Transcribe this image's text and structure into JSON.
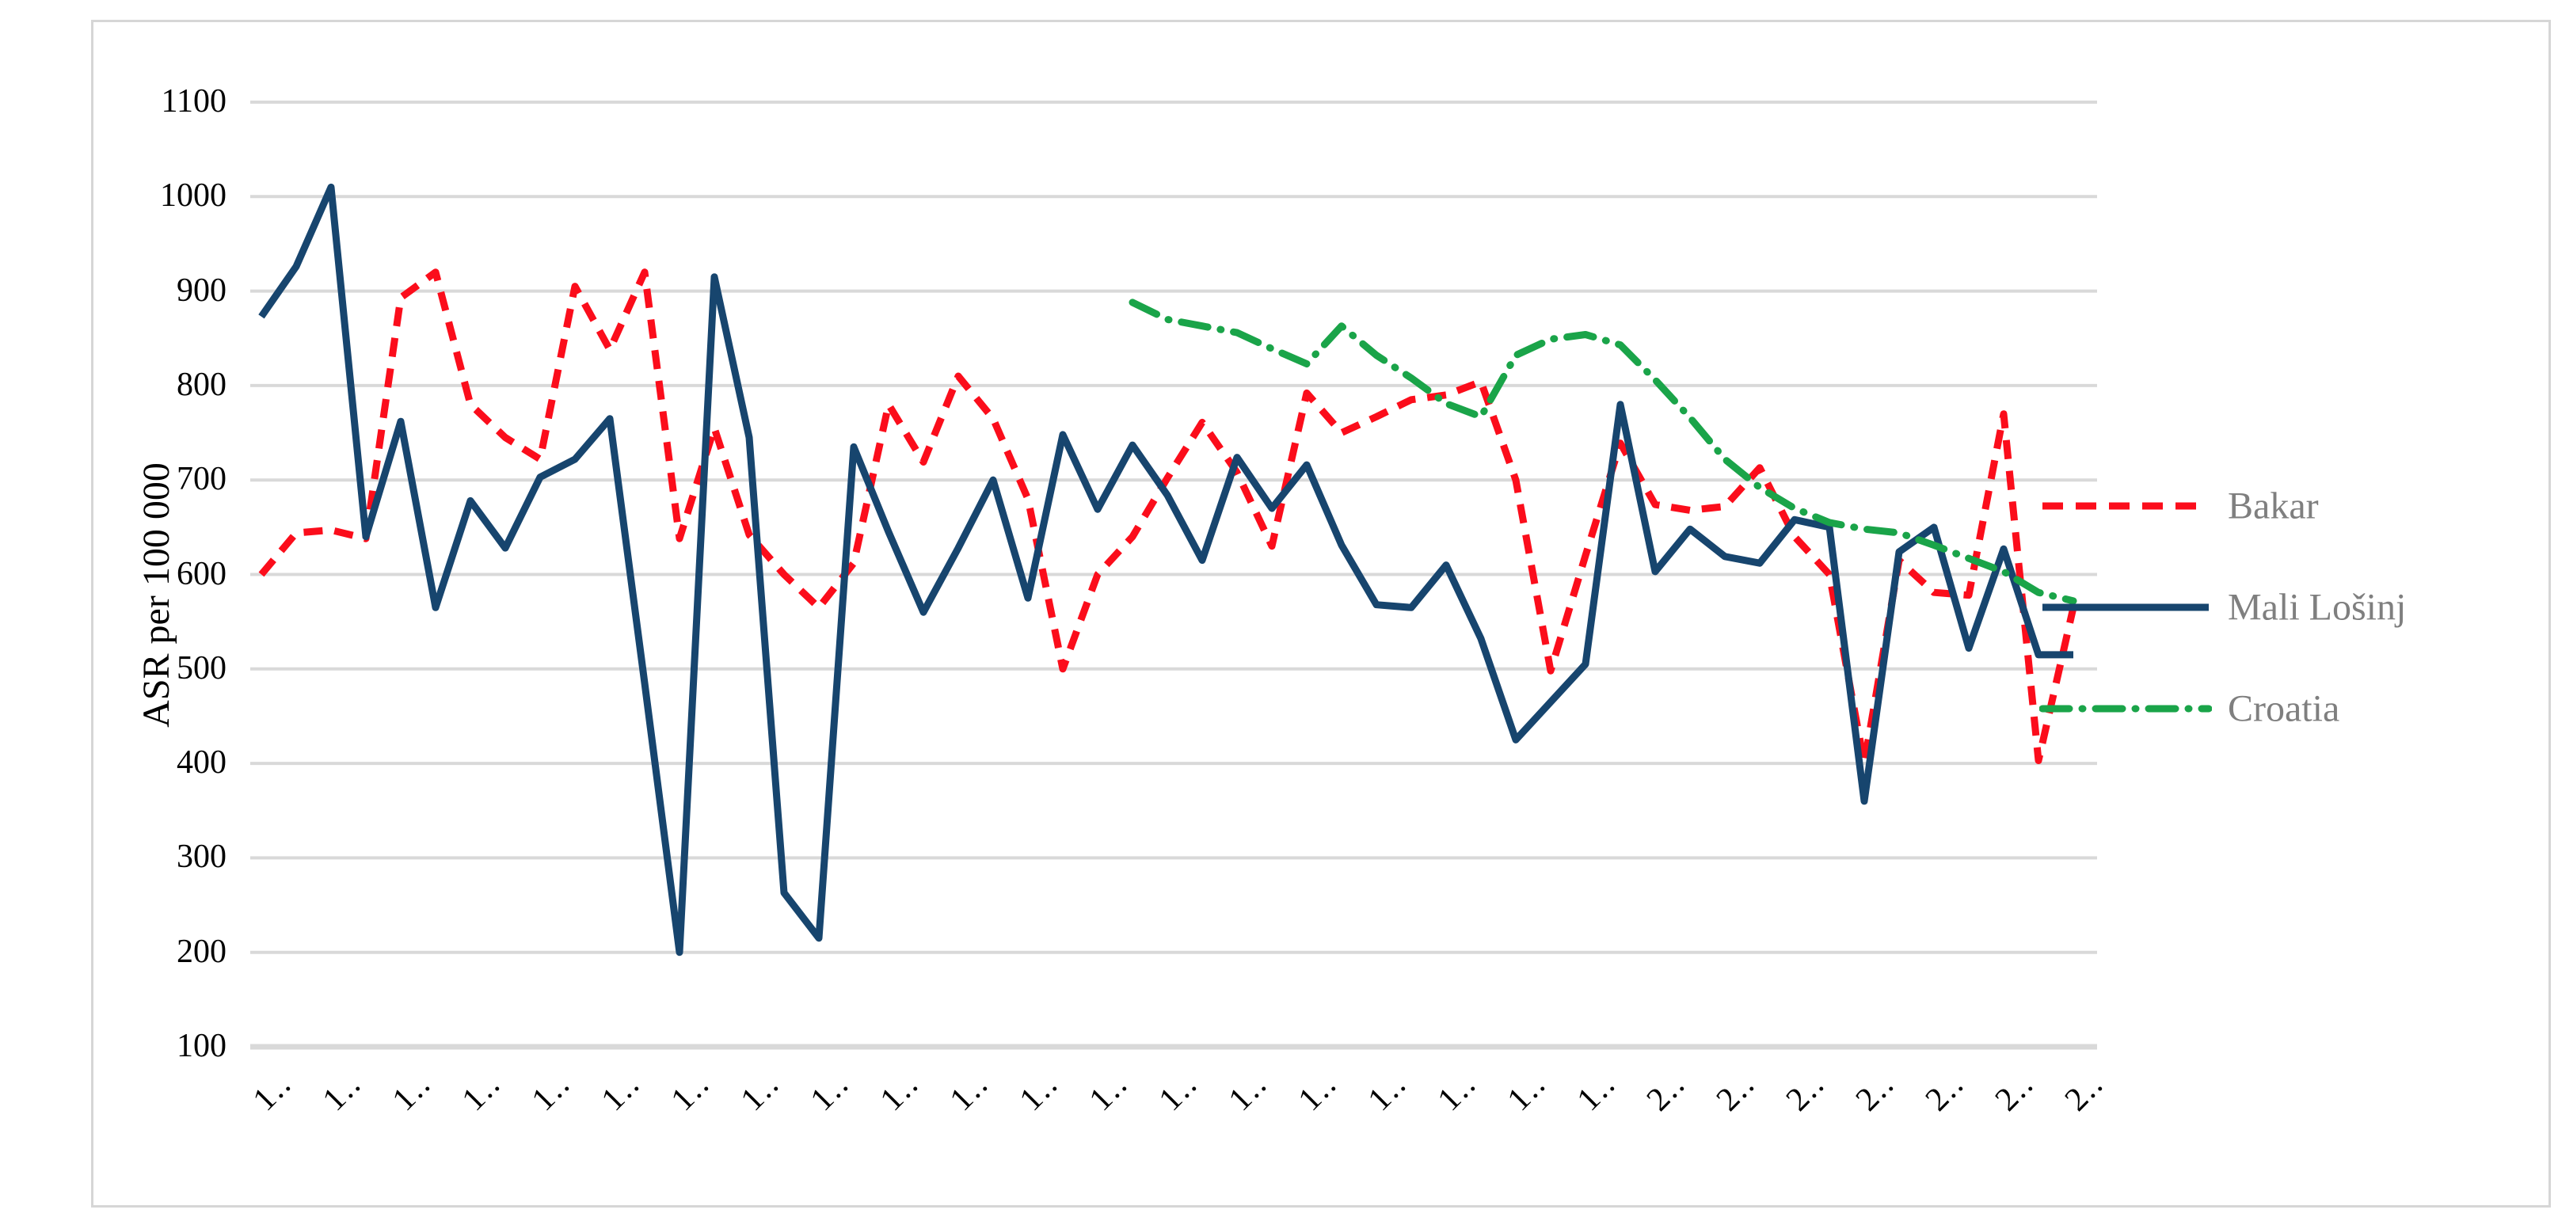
{
  "y_axis": {
    "title": "ASR per 100 000",
    "ticks": [
      1100,
      1000,
      900,
      800,
      700,
      600,
      500,
      400,
      300,
      200,
      100
    ]
  },
  "x_axis": {
    "tick_labels": [
      "1..",
      "1..",
      "1..",
      "1..",
      "1..",
      "1..",
      "1..",
      "1..",
      "1..",
      "1..",
      "1..",
      "1..",
      "1..",
      "1..",
      "1..",
      "1..",
      "1..",
      "1..",
      "1..",
      "1..",
      "2..",
      "2..",
      "2..",
      "2..",
      "2..",
      "2..",
      "2.."
    ]
  },
  "legend": [
    {
      "label": "Bakar",
      "color": "#fb0d1b",
      "style": "dashed"
    },
    {
      "label": "Mali Lošinj",
      "color": "#17456e",
      "style": "solid"
    },
    {
      "label": "Croatia",
      "color": "#1aa449",
      "style": "dashdot"
    }
  ],
  "colors": {
    "grid": "#d9d9d9",
    "axis_line": "#d9d9d9",
    "tick_text": "#000000",
    "legend_text": "#7f7f7f"
  },
  "chart_data": {
    "type": "line",
    "title": "",
    "xlabel": "",
    "ylabel": "ASR per 100 000",
    "ylim": [
      100,
      1100
    ],
    "grid": "horizontal",
    "legend_position": "right",
    "x_tick_note": "27 rotated truncated year labels; first 20 begin with 1, last 7 begin with 2; data has 53 yearly points (labels every 2nd point)",
    "series": [
      {
        "name": "Bakar",
        "color": "#fb0d1b",
        "style": "dashed",
        "values": [
          600,
          644,
          647,
          638,
          893,
          920,
          780,
          745,
          722,
          905,
          838,
          920,
          638,
          755,
          642,
          600,
          565,
          612,
          780,
          719,
          810,
          765,
          680,
          500,
          600,
          640,
          702,
          761,
          708,
          630,
          792,
          750,
          767,
          785,
          790,
          804,
          700,
          498,
          620,
          739,
          674,
          668,
          672,
          713,
          640,
          600,
          400,
          615,
          581,
          578,
          770,
          403,
          565
        ]
      },
      {
        "name": "Mali Lošinj",
        "color": "#17456e",
        "style": "solid",
        "values": [
          873,
          926,
          1010,
          640,
          762,
          565,
          678,
          628,
          703,
          722,
          765,
          485,
          200,
          915,
          745,
          263,
          215,
          735,
          645,
          560,
          628,
          700,
          575,
          748,
          669,
          737,
          684,
          615,
          724,
          670,
          716,
          631,
          568,
          565,
          610,
          532,
          425,
          465,
          505,
          780,
          603,
          648,
          619,
          612,
          658,
          650,
          360,
          624,
          650,
          522,
          627,
          515,
          515
        ]
      },
      {
        "name": "Croatia",
        "color": "#1aa449",
        "style": "dashdot",
        "values": [
          null,
          null,
          null,
          null,
          null,
          null,
          null,
          null,
          null,
          null,
          null,
          null,
          null,
          null,
          null,
          null,
          null,
          null,
          null,
          null,
          null,
          null,
          null,
          null,
          null,
          888,
          870,
          863,
          856,
          839,
          823,
          863,
          832,
          808,
          781,
          767,
          832,
          849,
          854,
          843,
          806,
          766,
          722,
          692,
          670,
          655,
          648,
          644,
          631,
          617,
          603,
          581,
          572
        ]
      }
    ]
  }
}
